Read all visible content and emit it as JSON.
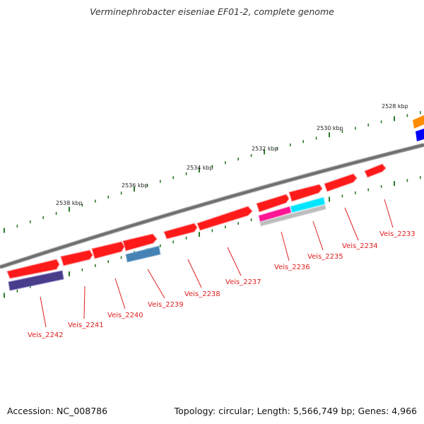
{
  "title": "Verminephrobacter eiseniae EF01-2, complete genome",
  "footer": {
    "accession": "Accession: NC_008786",
    "summary": "Topology: circular; Length: 5,566,749 bp; Genes: 4,966"
  },
  "colors": {
    "backbone": "#7d7d7d",
    "forward_gene": "#ff1a1a",
    "tick": "#2a7a2a",
    "label": "#e02020",
    "orange": "#ff8c00",
    "blue": "#0000ff",
    "purple": "#483d8b",
    "steelblue": "#4682b4",
    "magenta": "#ff1493",
    "cyan": "#00e5ff",
    "gray": "#b4b4b4"
  },
  "scale_labels": [
    "2528 kbp",
    "2530 kbp",
    "2532 kbp",
    "2534 kbp",
    "2536 kbp",
    "2538 kbp"
  ],
  "genes": [
    {
      "label": "Veis_2233",
      "track": "forward",
      "color": "#ff1a1a",
      "labeled": true
    },
    {
      "label": "Veis_2234",
      "track": "forward",
      "color": "#ff1a1a",
      "labeled": true
    },
    {
      "label": "Veis_2235",
      "track": "forward",
      "color": "#ff1a1a",
      "labeled": true
    },
    {
      "label": "Veis_2236",
      "track": "forward",
      "color": "#ff1a1a",
      "labeled": true
    },
    {
      "label": "Veis_2237",
      "track": "forward",
      "color": "#ff1a1a",
      "labeled": true
    },
    {
      "label": "Veis_2238",
      "track": "forward",
      "color": "#ff1a1a",
      "labeled": true
    },
    {
      "label": "Veis_2239",
      "track": "forward",
      "color": "#ff1a1a",
      "labeled": true
    },
    {
      "label": "Veis_2240",
      "track": "forward",
      "color": "#ff1a1a",
      "labeled": true
    },
    {
      "label": "Veis_2241",
      "track": "forward",
      "color": "#ff1a1a",
      "labeled": true
    },
    {
      "label": "Veis_2242",
      "track": "forward",
      "color": "#ff1a1a",
      "labeled": true
    }
  ]
}
